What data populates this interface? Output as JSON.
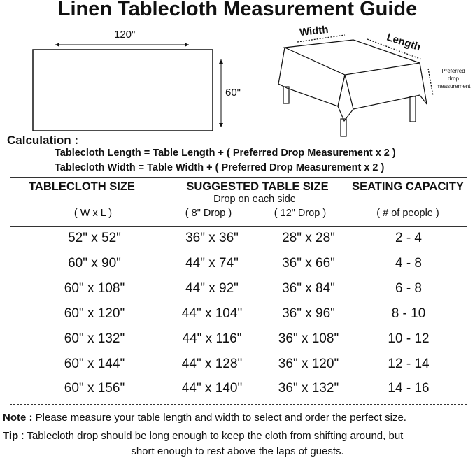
{
  "title": "Linen Tablecloth Measurement Guide",
  "diagram": {
    "width_dim": "120\"",
    "height_dim": "60\"",
    "width_label": "Width",
    "length_label": "Length",
    "drop_label_lines": [
      "Preferred",
      "drop",
      "measurement"
    ]
  },
  "calculation": {
    "heading": "Calculation :",
    "formulas": [
      "Tablecloth Length = Table Length + ( Preferred Drop Measurement x 2 )",
      "Tablecloth Width = Table Width + ( Preferred Drop Measurement x 2 )"
    ]
  },
  "table": {
    "headers": [
      "TABLECLOTH SIZE",
      "SUGGESTED TABLE SIZE",
      "SEATING CAPACITY"
    ],
    "drop_note": "Drop on each side",
    "subheaders": [
      "( W x L )",
      "( 8\" Drop )",
      "( 12\" Drop )",
      "( # of people )"
    ],
    "rows": [
      [
        "52\" x 52\"",
        "36\" x 36\"",
        "28\" x 28\"",
        "2 - 4"
      ],
      [
        "60\" x 90\"",
        "44\" x 74\"",
        "36\" x 66\"",
        "4 - 8"
      ],
      [
        "60\" x 108\"",
        "44\" x 92\"",
        "36\" x 84\"",
        "6 - 8"
      ],
      [
        "60\" x 120\"",
        "44\" x 104\"",
        "36\" x 96\"",
        "8 - 10"
      ],
      [
        "60\" x 132\"",
        "44\" x 116\"",
        "36\" x 108\"",
        "10 - 12"
      ],
      [
        "60\" x 144\"",
        "44\" x 128\"",
        "36\" x 120\"",
        "12 - 14"
      ],
      [
        "60\" x 156\"",
        "44\" x 140\"",
        "36\" x 132\"",
        "14 - 16"
      ]
    ]
  },
  "notes": {
    "note_label": "Note :",
    "note_text": " Please measure your table length and width to select and order the perfect size.",
    "tip_label": "Tip",
    "tip_text_1": " : Tablecloth drop should be long enough to keep the cloth from shifting around, but",
    "tip_text_2": "short enough to rest above the laps of guests."
  }
}
